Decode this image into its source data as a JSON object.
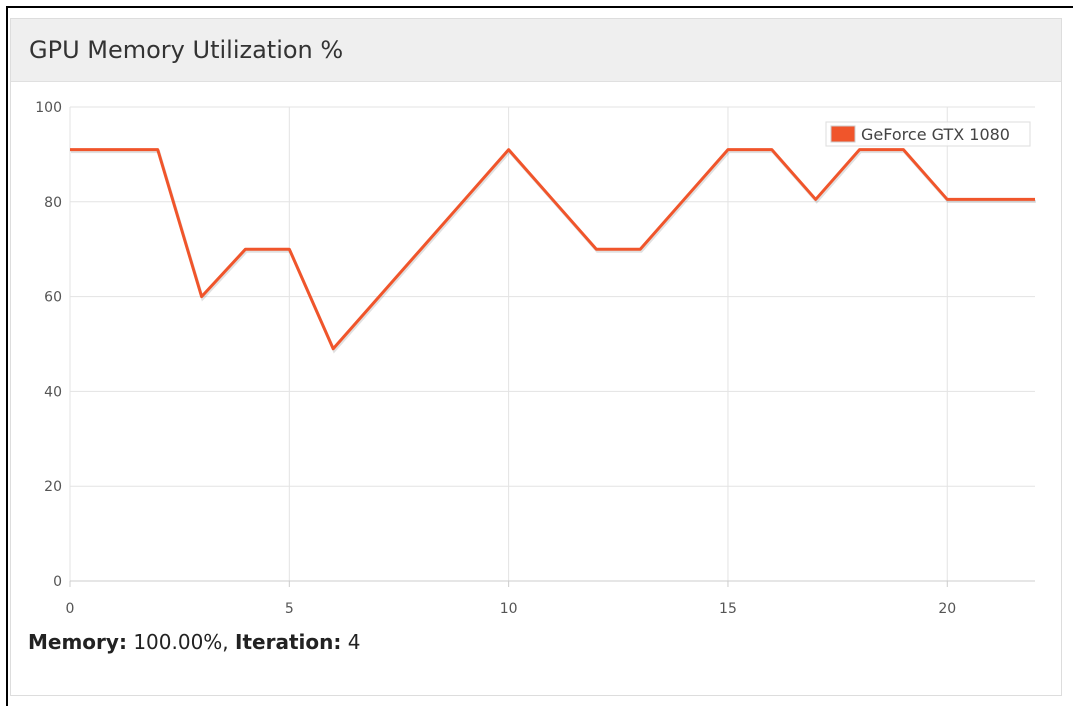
{
  "chart_data": {
    "type": "line",
    "title": "GPU Memory Utilization %",
    "x": [
      0,
      1,
      2,
      3,
      4,
      5,
      6,
      7,
      8,
      9,
      10,
      11,
      12,
      13,
      14,
      15,
      16,
      17,
      18,
      19,
      20,
      21,
      22
    ],
    "series": [
      {
        "name": "GeForce GTX 1080",
        "color": "#f0552b",
        "values": [
          91,
          91,
          91,
          60,
          70,
          70,
          49,
          59.5,
          70,
          80.5,
          91,
          80.5,
          70,
          70,
          80.5,
          91,
          91,
          80.5,
          91,
          91,
          80.5,
          80.5,
          80.5
        ]
      }
    ],
    "xlim": [
      0,
      22
    ],
    "xticks": [
      0,
      5,
      10,
      15,
      20
    ],
    "ylim": [
      0,
      100
    ],
    "yticks": [
      0,
      20,
      40,
      60,
      80,
      100
    ],
    "grid": true,
    "legend": "upper right"
  },
  "status": {
    "memory_label": "Memory:",
    "memory_value": "100.00%,",
    "iteration_label": "Iteration:",
    "iteration_value": "4"
  }
}
